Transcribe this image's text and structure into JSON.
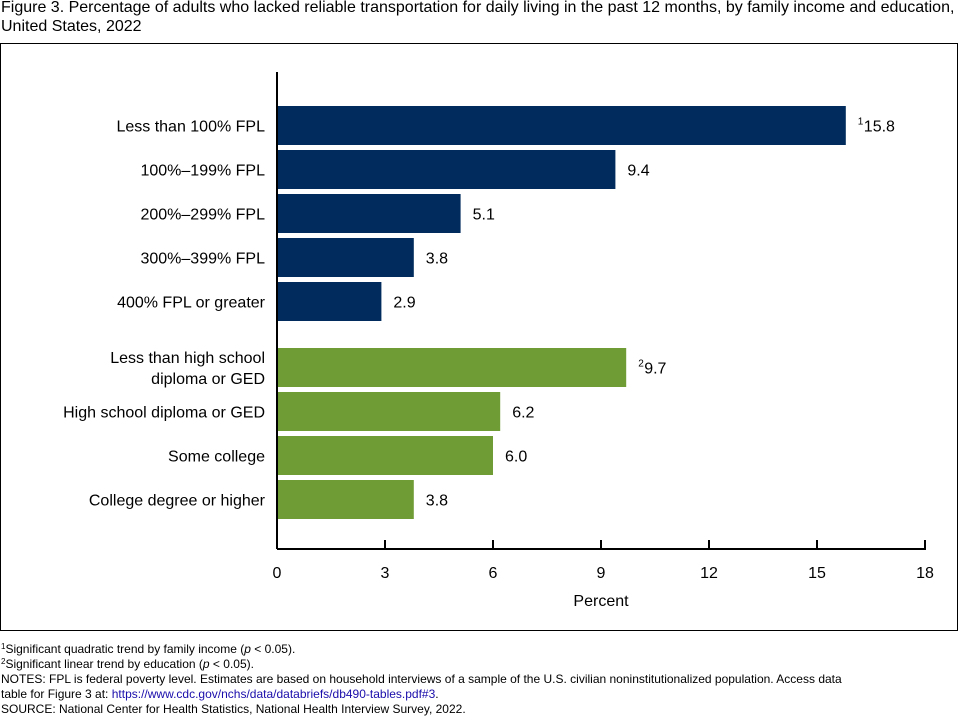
{
  "title": "Figure 3. Percentage of adults who lacked reliable transportation for daily living in the past 12 months, by family income and education, United States, 2022",
  "colors": {
    "income": "#002b5c",
    "education": "#6f9c35",
    "link": "#1a0dab"
  },
  "chart_data": {
    "type": "bar",
    "orientation": "horizontal",
    "xlabel": "Percent",
    "xlim": [
      0,
      18
    ],
    "xticks": [
      0,
      3,
      6,
      9,
      12,
      15,
      18
    ],
    "grid": false,
    "groups": [
      {
        "color": "#002b5c",
        "bars": [
          {
            "label": [
              "Less than 100% FPL"
            ],
            "value": 15.8,
            "value_label": "15.8",
            "footnote": "1"
          },
          {
            "label": [
              "100%–199% FPL"
            ],
            "value": 9.4,
            "value_label": "9.4"
          },
          {
            "label": [
              "200%–299% FPL"
            ],
            "value": 5.1,
            "value_label": "5.1"
          },
          {
            "label": [
              "300%–399% FPL"
            ],
            "value": 3.8,
            "value_label": "3.8"
          },
          {
            "label": [
              "400% FPL or greater"
            ],
            "value": 2.9,
            "value_label": "2.9"
          }
        ]
      },
      {
        "color": "#6f9c35",
        "bars": [
          {
            "label": [
              "Less than high school",
              "diploma or GED"
            ],
            "value": 9.7,
            "value_label": "9.7",
            "footnote": "2"
          },
          {
            "label": [
              "High school diploma or GED"
            ],
            "value": 6.2,
            "value_label": "6.2"
          },
          {
            "label": [
              "Some college"
            ],
            "value": 6.0,
            "value_label": "6.0"
          },
          {
            "label": [
              "College degree or higher"
            ],
            "value": 3.8,
            "value_label": "3.8"
          }
        ]
      }
    ]
  },
  "footnotes": {
    "fn1": {
      "mark": "1",
      "text_before": "Significant quadratic trend by family income (",
      "italic": "p",
      "text_after": " < 0.05)."
    },
    "fn2": {
      "mark": "2",
      "text_before": "Significant linear trend by education (",
      "italic": "p",
      "text_after": " < 0.05)."
    },
    "notes_line1": "NOTES: FPL is federal poverty level. Estimates are based on household interviews of a sample of the U.S. civilian noninstitutionalized population. Access data",
    "notes_line2_prefix": "table for Figure 3 at: ",
    "notes_link": "https://www.cdc.gov/nchs/data/databriefs/db490-tables.pdf#3",
    "notes_line2_suffix": ".",
    "source": "SOURCE: National Center for Health Statistics, National Health Interview Survey, 2022."
  }
}
